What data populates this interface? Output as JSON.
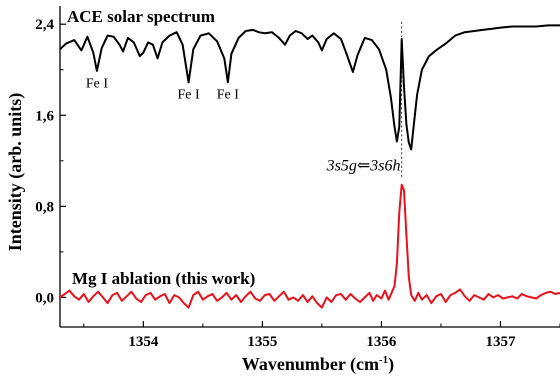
{
  "chart_data": {
    "type": "line",
    "xlabel": "Wavenumber (cm",
    "xlabel_sup": "-1",
    "xlabel_close": ")",
    "ylabel": "Intensity (arb. units)",
    "xlim": [
      1353.3,
      1357.5
    ],
    "ylim": [
      -0.26,
      2.56
    ],
    "x_ticks": [
      1354,
      1355,
      1356,
      1357
    ],
    "x_tick_labels": [
      "1354",
      "1355",
      "1356",
      "1357"
    ],
    "y_ticks": [
      0.0,
      0.8,
      1.6,
      2.4
    ],
    "y_tick_labels": [
      "0,0",
      "0,8",
      "1,6",
      "2,4"
    ],
    "grid": false,
    "series": [
      {
        "name": "ACE solar spectrum",
        "color": "#000000",
        "points": [
          [
            1353.3,
            2.18
          ],
          [
            1353.35,
            2.23
          ],
          [
            1353.42,
            2.26
          ],
          [
            1353.48,
            2.17
          ],
          [
            1353.53,
            2.29
          ],
          [
            1353.58,
            2.15
          ],
          [
            1353.61,
            1.99
          ],
          [
            1353.65,
            2.19
          ],
          [
            1353.7,
            2.3
          ],
          [
            1353.75,
            2.29
          ],
          [
            1353.8,
            2.22
          ],
          [
            1353.83,
            2.16
          ],
          [
            1353.87,
            2.28
          ],
          [
            1353.92,
            2.24
          ],
          [
            1353.97,
            2.12
          ],
          [
            1354.0,
            2.15
          ],
          [
            1354.04,
            2.24
          ],
          [
            1354.08,
            2.22
          ],
          [
            1354.12,
            2.1
          ],
          [
            1354.16,
            2.24
          ],
          [
            1354.22,
            2.3
          ],
          [
            1354.28,
            2.33
          ],
          [
            1354.33,
            2.22
          ],
          [
            1354.38,
            1.89
          ],
          [
            1354.42,
            2.18
          ],
          [
            1354.48,
            2.3
          ],
          [
            1354.55,
            2.32
          ],
          [
            1354.62,
            2.25
          ],
          [
            1354.68,
            2.1
          ],
          [
            1354.71,
            1.89
          ],
          [
            1354.74,
            2.14
          ],
          [
            1354.8,
            2.28
          ],
          [
            1354.86,
            2.34
          ],
          [
            1354.92,
            2.35
          ],
          [
            1354.97,
            2.33
          ],
          [
            1355.02,
            2.32
          ],
          [
            1355.08,
            2.33
          ],
          [
            1355.14,
            2.28
          ],
          [
            1355.19,
            2.22
          ],
          [
            1355.23,
            2.3
          ],
          [
            1355.28,
            2.34
          ],
          [
            1355.33,
            2.32
          ],
          [
            1355.38,
            2.27
          ],
          [
            1355.42,
            2.3
          ],
          [
            1355.47,
            2.24
          ],
          [
            1355.5,
            2.17
          ],
          [
            1355.54,
            2.27
          ],
          [
            1355.6,
            2.32
          ],
          [
            1355.66,
            2.27
          ],
          [
            1355.71,
            2.13
          ],
          [
            1355.76,
            1.98
          ],
          [
            1355.8,
            2.13
          ],
          [
            1355.86,
            2.28
          ],
          [
            1355.92,
            2.26
          ],
          [
            1355.98,
            2.18
          ],
          [
            1356.04,
            2.0
          ],
          [
            1356.08,
            1.75
          ],
          [
            1356.11,
            1.5
          ],
          [
            1356.13,
            1.37
          ],
          [
            1356.15,
            1.5
          ],
          [
            1356.17,
            2.27
          ],
          [
            1356.19,
            1.85
          ],
          [
            1356.21,
            1.52
          ],
          [
            1356.23,
            1.36
          ],
          [
            1356.25,
            1.3
          ],
          [
            1356.27,
            1.5
          ],
          [
            1356.3,
            1.78
          ],
          [
            1356.34,
            2.0
          ],
          [
            1356.4,
            2.12
          ],
          [
            1356.47,
            2.18
          ],
          [
            1356.54,
            2.23
          ],
          [
            1356.62,
            2.3
          ],
          [
            1356.7,
            2.33
          ],
          [
            1356.78,
            2.34
          ],
          [
            1356.85,
            2.35
          ],
          [
            1356.93,
            2.36
          ],
          [
            1357.0,
            2.37
          ],
          [
            1357.1,
            2.38
          ],
          [
            1357.2,
            2.38
          ],
          [
            1357.3,
            2.38
          ],
          [
            1357.4,
            2.39
          ],
          [
            1357.5,
            2.39
          ]
        ]
      },
      {
        "name": "Mg I ablation (this work)",
        "color": "#e8121c",
        "points": [
          [
            1353.3,
            0.0
          ],
          [
            1353.34,
            0.03
          ],
          [
            1353.38,
            0.06
          ],
          [
            1353.42,
            0.01
          ],
          [
            1353.46,
            -0.02
          ],
          [
            1353.5,
            0.03
          ],
          [
            1353.54,
            -0.04
          ],
          [
            1353.58,
            0.01
          ],
          [
            1353.62,
            0.05
          ],
          [
            1353.66,
            0.0
          ],
          [
            1353.7,
            -0.05
          ],
          [
            1353.74,
            0.02
          ],
          [
            1353.78,
            0.04
          ],
          [
            1353.82,
            -0.03
          ],
          [
            1353.86,
            0.01
          ],
          [
            1353.9,
            0.05
          ],
          [
            1353.94,
            -0.01
          ],
          [
            1353.98,
            -0.04
          ],
          [
            1354.02,
            0.02
          ],
          [
            1354.06,
            0.04
          ],
          [
            1354.1,
            -0.02
          ],
          [
            1354.14,
            0.01
          ],
          [
            1354.18,
            0.03
          ],
          [
            1354.22,
            -0.05
          ],
          [
            1354.26,
            0.02
          ],
          [
            1354.3,
            0.0
          ],
          [
            1354.34,
            -0.05
          ],
          [
            1354.38,
            -0.09
          ],
          [
            1354.42,
            0.02
          ],
          [
            1354.46,
            0.05
          ],
          [
            1354.5,
            -0.02
          ],
          [
            1354.54,
            0.01
          ],
          [
            1354.58,
            0.03
          ],
          [
            1354.62,
            -0.03
          ],
          [
            1354.66,
            0.0
          ],
          [
            1354.7,
            0.04
          ],
          [
            1354.74,
            -0.02
          ],
          [
            1354.78,
            0.02
          ],
          [
            1354.82,
            -0.04
          ],
          [
            1354.86,
            0.01
          ],
          [
            1354.9,
            0.05
          ],
          [
            1354.94,
            -0.01
          ],
          [
            1354.98,
            -0.03
          ],
          [
            1355.02,
            0.02
          ],
          [
            1355.06,
            0.03
          ],
          [
            1355.1,
            -0.03
          ],
          [
            1355.14,
            0.01
          ],
          [
            1355.18,
            0.05
          ],
          [
            1355.22,
            -0.02
          ],
          [
            1355.26,
            0.0
          ],
          [
            1355.3,
            -0.03
          ],
          [
            1355.34,
            0.02
          ],
          [
            1355.38,
            -0.04
          ],
          [
            1355.42,
            0.01
          ],
          [
            1355.46,
            -0.05
          ],
          [
            1355.5,
            -0.09
          ],
          [
            1355.54,
            0.0
          ],
          [
            1355.58,
            -0.04
          ],
          [
            1355.62,
            0.02
          ],
          [
            1355.66,
            0.03
          ],
          [
            1355.7,
            -0.02
          ],
          [
            1355.74,
            0.03
          ],
          [
            1355.78,
            -0.01
          ],
          [
            1355.82,
            -0.04
          ],
          [
            1355.86,
            0.0
          ],
          [
            1355.9,
            0.04
          ],
          [
            1355.93,
            -0.03
          ],
          [
            1355.96,
            0.02
          ],
          [
            1356.0,
            -0.01
          ],
          [
            1356.03,
            0.06
          ],
          [
            1356.06,
            -0.02
          ],
          [
            1356.09,
            0.05
          ],
          [
            1356.11,
            0.1
          ],
          [
            1356.13,
            0.3
          ],
          [
            1356.15,
            0.75
          ],
          [
            1356.17,
            0.99
          ],
          [
            1356.19,
            0.94
          ],
          [
            1356.21,
            0.55
          ],
          [
            1356.23,
            0.18
          ],
          [
            1356.25,
            0.02
          ],
          [
            1356.28,
            -0.03
          ],
          [
            1356.31,
            0.04
          ],
          [
            1356.34,
            -0.02
          ],
          [
            1356.38,
            0.02
          ],
          [
            1356.42,
            -0.05
          ],
          [
            1356.46,
            0.01
          ],
          [
            1356.5,
            0.03
          ],
          [
            1356.54,
            -0.04
          ],
          [
            1356.58,
            0.02
          ],
          [
            1356.62,
            0.04
          ],
          [
            1356.66,
            0.07
          ],
          [
            1356.7,
            0.01
          ],
          [
            1356.74,
            -0.03
          ],
          [
            1356.78,
            0.02
          ],
          [
            1356.82,
            0.0
          ],
          [
            1356.86,
            -0.02
          ],
          [
            1356.9,
            0.03
          ],
          [
            1356.94,
            0.0
          ],
          [
            1356.98,
            0.02
          ],
          [
            1357.02,
            -0.01
          ],
          [
            1357.06,
            0.0
          ],
          [
            1357.1,
            0.01
          ],
          [
            1357.14,
            -0.01
          ],
          [
            1357.18,
            0.03
          ],
          [
            1357.22,
            0.01
          ],
          [
            1357.26,
            0.0
          ],
          [
            1357.3,
            -0.01
          ],
          [
            1357.34,
            0.02
          ],
          [
            1357.38,
            0.04
          ],
          [
            1357.42,
            0.05
          ],
          [
            1357.46,
            0.03
          ],
          [
            1357.5,
            0.04
          ]
        ]
      }
    ],
    "annotations": [
      {
        "text": "Fe I",
        "x": 1353.61,
        "y": 1.96
      },
      {
        "text": "Fe I",
        "x": 1354.38,
        "y": 1.86
      },
      {
        "text": "Fe I",
        "x": 1354.71,
        "y": 1.86
      }
    ],
    "transition_label": {
      "a": "3s5g",
      "arrow": "⇐",
      "b": "3s6h",
      "x": 1355.85,
      "y": 1.16
    },
    "reference_line_x": 1356.17
  }
}
